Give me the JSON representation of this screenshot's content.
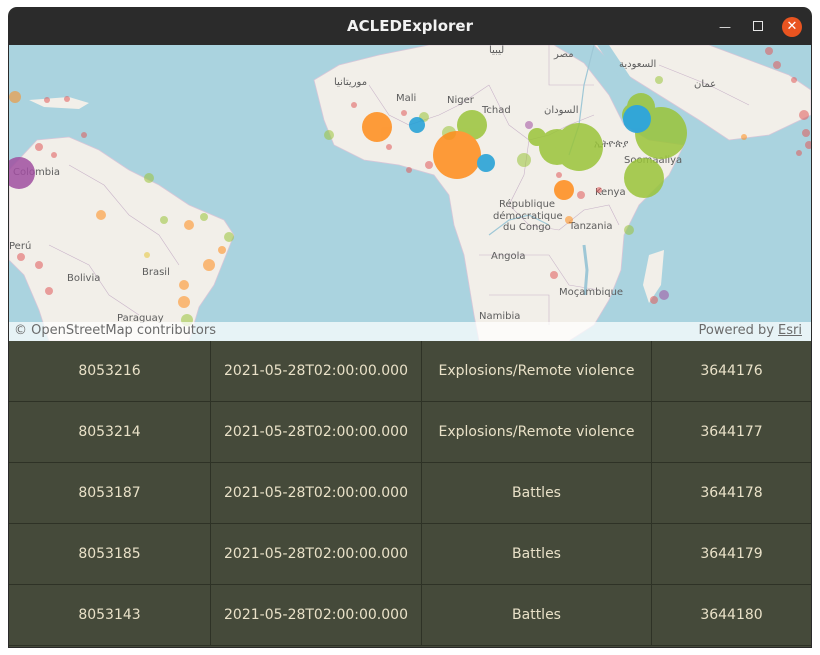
{
  "window": {
    "title": "ACLEDExplorer"
  },
  "map": {
    "attribution_left": "© OpenStreetMap contributors",
    "attribution_right_prefix": "Powered by",
    "attribution_right_link": "Esri",
    "labels": [
      {
        "text": "Mali"
      },
      {
        "text": "Niger"
      },
      {
        "text": "Tchad"
      },
      {
        "text": "السودان"
      },
      {
        "text": "مصر"
      },
      {
        "text": "ليبيا"
      },
      {
        "text": "السعودية"
      },
      {
        "text": "عمان"
      },
      {
        "text": "موريتانيا"
      },
      {
        "text": "ኢትዮጵያ"
      },
      {
        "text": "Soomaaliya"
      },
      {
        "text": "Kenya"
      },
      {
        "text": "République"
      },
      {
        "text": "démocratique"
      },
      {
        "text": "du Congo"
      },
      {
        "text": "Tanzania"
      },
      {
        "text": "Angola"
      },
      {
        "text": "Moçambique"
      },
      {
        "text": "Namibia"
      },
      {
        "text": "Colombia"
      },
      {
        "text": "Perú"
      },
      {
        "text": "Bolivia"
      },
      {
        "text": "Brasil"
      },
      {
        "text": "Paraguay"
      }
    ]
  },
  "table": {
    "rows": [
      [
        "8053216",
        "2021-05-28T02:00:00.000",
        "Explosions/Remote violence",
        "3644176"
      ],
      [
        "8053214",
        "2021-05-28T02:00:00.000",
        "Explosions/Remote violence",
        "3644177"
      ],
      [
        "8053187",
        "2021-05-28T02:00:00.000",
        "Battles",
        "3644178"
      ],
      [
        "8053185",
        "2021-05-28T02:00:00.000",
        "Battles",
        "3644179"
      ],
      [
        "8053143",
        "2021-05-28T02:00:00.000",
        "Battles",
        "3644180"
      ]
    ]
  },
  "colors": {
    "orange": "#ff8c1a",
    "green": "#9ac43a",
    "blue": "#1e9ed6",
    "purple": "#a04fa0",
    "red": "#e05a5a",
    "water": "#aad3df",
    "land": "#f2efe9"
  },
  "icons": {
    "minimize": "minimize-icon",
    "maximize": "maximize-icon",
    "close": "close-icon"
  }
}
